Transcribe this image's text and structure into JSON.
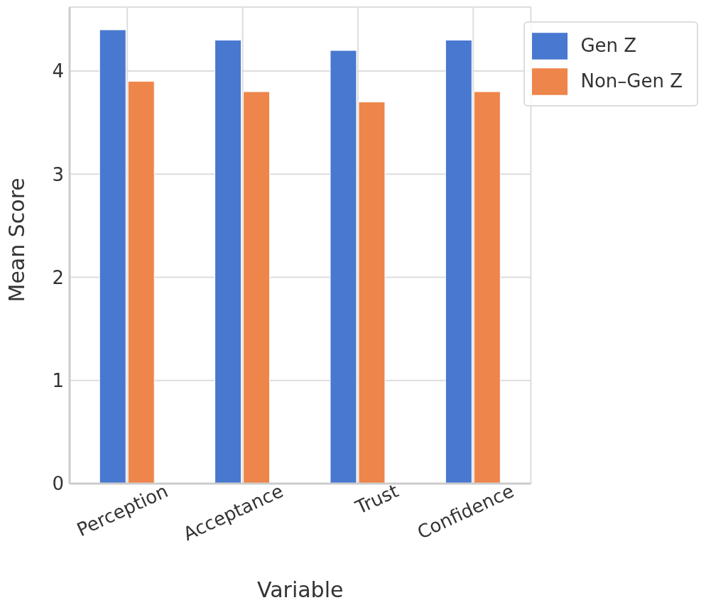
{
  "chart_data": {
    "type": "bar",
    "xlabel": "Variable",
    "ylabel": "Mean Score",
    "categories": [
      "Perception",
      "Acceptance",
      "Trust",
      "Confidence"
    ],
    "series": [
      {
        "name": "Gen Z",
        "color": "#4878d0",
        "values": [
          4.4,
          4.3,
          4.2,
          4.3
        ]
      },
      {
        "name": "Non–Gen Z",
        "color": "#ee854a",
        "values": [
          3.9,
          3.8,
          3.7,
          3.8
        ]
      }
    ],
    "ylim": [
      0,
      4.62
    ],
    "yticks": [
      0,
      1,
      2,
      3,
      4
    ],
    "grid": true,
    "legend": "top right"
  }
}
